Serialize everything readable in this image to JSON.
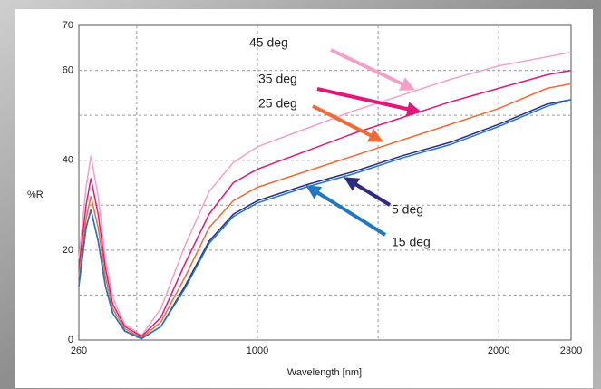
{
  "chart_data": {
    "type": "line",
    "y_label": "%R",
    "x_label": "Wavelength [nm]",
    "x": [
      260,
      290,
      310,
      340,
      370,
      400,
      450,
      520,
      600,
      700,
      800,
      900,
      1000,
      1200,
      1400,
      1600,
      1800,
      2000,
      2200,
      2300
    ],
    "series": [
      {
        "name": "45 deg",
        "color": "#f4a0c8",
        "values": [
          18,
          34,
          41,
          32,
          18,
          9.5,
          3.5,
          1,
          7,
          21,
          33,
          39.5,
          43,
          47,
          51,
          54.5,
          58,
          61,
          63,
          64
        ]
      },
      {
        "name": "35 deg",
        "color": "#e0187a",
        "values": [
          16,
          30,
          36,
          28,
          16,
          8,
          3,
          0.8,
          5,
          17,
          28,
          35,
          38,
          42,
          46,
          49.5,
          53,
          56,
          59,
          60
        ]
      },
      {
        "name": "25 deg",
        "color": "#f26a35",
        "values": [
          14,
          27,
          32,
          25,
          14,
          7,
          2.5,
          0.5,
          4,
          14,
          25,
          31,
          34,
          37.5,
          41,
          44.5,
          48,
          51.5,
          56,
          57
        ]
      },
      {
        "name": "5 deg",
        "color": "#2e2a82",
        "values": [
          12,
          25,
          29,
          22,
          12,
          6,
          2,
          0.3,
          3,
          12,
          22,
          28,
          31,
          34.5,
          37.5,
          41,
          44,
          48,
          52.5,
          53.5
        ]
      },
      {
        "name": "15 deg",
        "color": "#1f78c1",
        "values": [
          12,
          25,
          29,
          22,
          12,
          6,
          2,
          0.3,
          3,
          11.5,
          21.5,
          27.5,
          30.5,
          34,
          37,
          40.5,
          43.5,
          47.5,
          52,
          53.5
        ]
      }
    ],
    "xlim": [
      260,
      2300
    ],
    "ylim": [
      0,
      70
    ],
    "xticks": [
      260,
      1000,
      2000,
      2300
    ],
    "yticks": [
      0,
      20,
      40,
      60,
      70
    ],
    "x_minor_grid": [
      500,
      1500
    ],
    "y_minor_grid": [
      10,
      30,
      50
    ],
    "grid": true
  }
}
